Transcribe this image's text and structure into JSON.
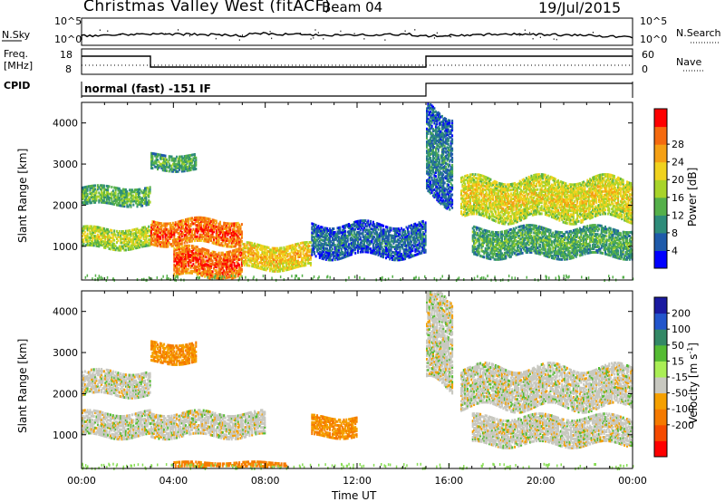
{
  "header": {
    "station": "Christmas Valley West (fitACF)",
    "beam": "Beam 04",
    "date": "19/Jul/2015"
  },
  "scan_panel": {
    "nsky_label": "N.Sky",
    "nsky_ticks": [
      "10^5",
      "10^0"
    ],
    "nsearch_label": "N.Search",
    "nsearch_ticks": [
      "10^5",
      "10^0"
    ],
    "freq_label": "Freq.",
    "freq_unit": "[MHz]",
    "freq_ticks": [
      "18",
      "8"
    ],
    "nave_label": "Nave",
    "nave_ticks": [
      "60",
      "0"
    ],
    "cpid_label": "CPID",
    "cpid_text": "normal (fast) -151 IF"
  },
  "chart_data": [
    {
      "type": "heatmap",
      "panel": "power",
      "ylabel": "Slant Range [km]",
      "xlabel": "",
      "ylim": [
        180,
        4500
      ],
      "yticks": [
        1000,
        2000,
        3000,
        4000
      ],
      "x_hours": [
        0,
        24
      ],
      "colorbar_label": "Power [dB]",
      "colorbar_ticks": [
        "4",
        "8",
        "12",
        "16",
        "20",
        "24",
        "28"
      ],
      "colorbar_colors": [
        "#0000ff",
        "#1e5aaa",
        "#2e8c7a",
        "#55b04a",
        "#a8d42a",
        "#f0d21e",
        "#f5a014",
        "#f56a0f",
        "#ff0000"
      ],
      "echo_regions": [
        {
          "name": "ionospheric band",
          "t_start": "00:00",
          "t_end": "03:00",
          "range_km": [
            2050,
            2500
          ],
          "power_db": 14
        },
        {
          "name": "ionospheric band",
          "t_start": "00:00",
          "t_end": "03:00",
          "range_km": [
            1000,
            1500
          ],
          "power_db": 18
        },
        {
          "name": "upper patch",
          "t_start": "03:00",
          "t_end": "05:00",
          "range_km": [
            2900,
            3300
          ],
          "power_db": 13
        },
        {
          "name": "main band",
          "t_start": "03:00",
          "t_end": "07:00",
          "range_km": [
            1100,
            1700
          ],
          "power_db": 28
        },
        {
          "name": "strong echoes",
          "t_start": "04:00",
          "t_end": "07:00",
          "range_km": [
            300,
            1000
          ],
          "power_db": 28
        },
        {
          "name": "low band",
          "t_start": "07:00",
          "t_end": "10:00",
          "range_km": [
            500,
            1100
          ],
          "power_db": 22
        },
        {
          "name": "sparse echoes",
          "t_start": "10:00",
          "t_end": "15:00",
          "range_km": [
            800,
            1600
          ],
          "power_db": 8
        },
        {
          "name": "rising streak",
          "t_start": "15:00",
          "t_end": "16:10",
          "range_km": [
            2200,
            4400
          ],
          "power_db": 9
        },
        {
          "name": "wavy band",
          "t_start": "16:30",
          "t_end": "24:00",
          "range_km": [
            1700,
            2700
          ],
          "power_db": 20
        },
        {
          "name": "lower band",
          "t_start": "17:00",
          "t_end": "24:00",
          "range_km": [
            800,
            1500
          ],
          "power_db": 13
        }
      ]
    },
    {
      "type": "heatmap",
      "panel": "velocity",
      "ylabel": "Slant Range [km]",
      "xlabel": "Time UT",
      "ylim": [
        180,
        4500
      ],
      "yticks": [
        1000,
        2000,
        3000,
        4000
      ],
      "x_hours": [
        0,
        24
      ],
      "xticks": [
        "00:00",
        "04:00",
        "08:00",
        "12:00",
        "16:00",
        "20:00",
        "00:00"
      ],
      "colorbar_label": "Velocity [m s",
      "colorbar_label_sup": "-1",
      "colorbar_ticks": [
        "200",
        "100",
        "50",
        "15",
        "-15",
        "-50",
        "-100",
        "-200"
      ],
      "colorbar_colors": [
        "#1a1aa0",
        "#2255cc",
        "#338866",
        "#55bb33",
        "#aaee55",
        "#c8c8c0",
        "#f5a000",
        "#f57a00",
        "#f54a00",
        "#ff0000"
      ],
      "echo_regions": [
        {
          "name": "ionospheric band",
          "t_start": "00:00",
          "t_end": "03:00",
          "range_km": [
            2000,
            2600
          ],
          "velocity": 0
        },
        {
          "name": "ionospheric band",
          "t_start": "00:00",
          "t_end": "03:00",
          "range_km": [
            1000,
            1600
          ],
          "velocity": 0
        },
        {
          "name": "upper patch",
          "t_start": "03:00",
          "t_end": "05:00",
          "range_km": [
            2800,
            3300
          ],
          "velocity": -50
        },
        {
          "name": "main band",
          "t_start": "03:00",
          "t_end": "08:00",
          "range_km": [
            1000,
            1600
          ],
          "velocity": 0
        },
        {
          "name": "near-range",
          "t_start": "04:00",
          "t_end": "09:00",
          "range_km": [
            200,
            400
          ],
          "velocity": -60
        },
        {
          "name": "orange patch",
          "t_start": "10:00",
          "t_end": "12:00",
          "range_km": [
            1000,
            1500
          ],
          "velocity": -50
        },
        {
          "name": "rising streak",
          "t_start": "15:00",
          "t_end": "16:10",
          "range_km": [
            2200,
            4400
          ],
          "velocity": 0
        },
        {
          "name": "wavy band",
          "t_start": "16:30",
          "t_end": "24:00",
          "range_km": [
            1700,
            2700
          ],
          "velocity": 0
        },
        {
          "name": "lower band",
          "t_start": "17:00",
          "t_end": "24:00",
          "range_km": [
            800,
            1500
          ],
          "velocity": 0
        }
      ]
    }
  ]
}
